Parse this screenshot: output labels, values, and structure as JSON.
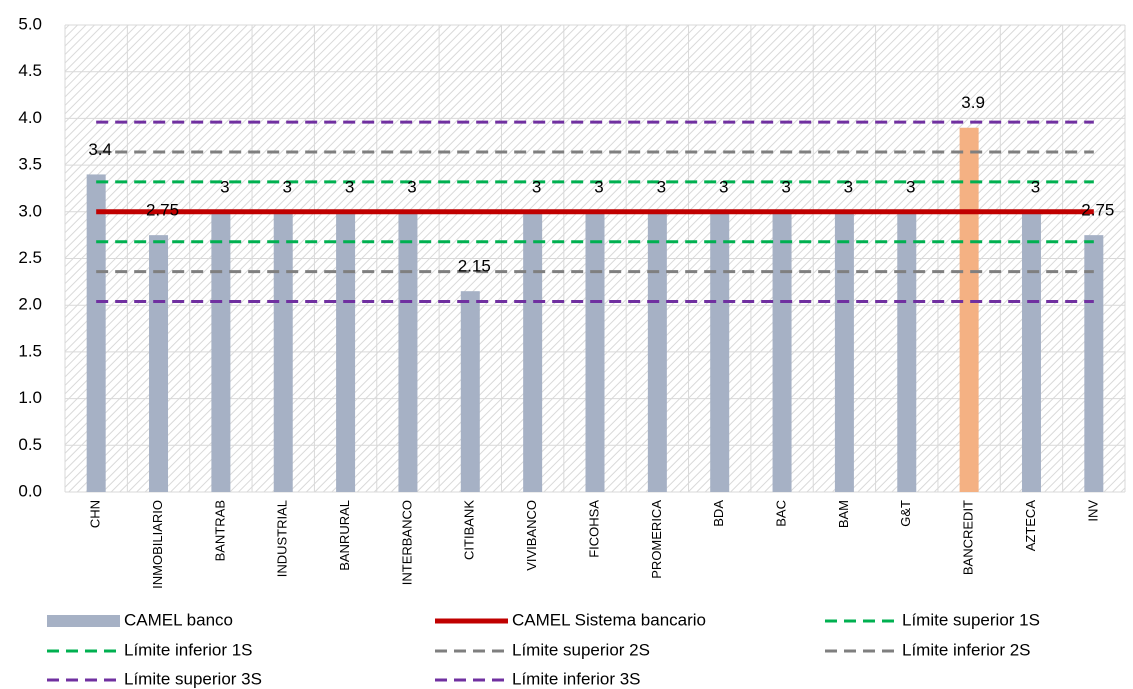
{
  "chart_data": {
    "type": "bar",
    "categories": [
      "CHN",
      "INMOBILIARIO",
      "BANTRAB",
      "INDUSTRIAL",
      "BANRURAL",
      "INTERBANCO",
      "CITIBANK",
      "VIVIBANCO",
      "FICOHSA",
      "PROMERICA",
      "BDA",
      "BAC",
      "BAM",
      "G&T",
      "BANCREDIT",
      "AZTECA",
      "INV"
    ],
    "series": [
      {
        "name": "CAMEL banco",
        "type": "bar",
        "color": "#a6b1c5",
        "colors": [
          "#a6b1c5",
          "#a6b1c5",
          "#a6b1c5",
          "#a6b1c5",
          "#a6b1c5",
          "#a6b1c5",
          "#a6b1c5",
          "#a6b1c5",
          "#a6b1c5",
          "#a6b1c5",
          "#a6b1c5",
          "#a6b1c5",
          "#a6b1c5",
          "#a6b1c5",
          "#f4b183",
          "#a6b1c5",
          "#a6b1c5"
        ],
        "values": [
          3.4,
          2.75,
          3,
          3,
          3,
          3,
          2.15,
          3,
          3,
          3,
          3,
          3,
          3,
          3,
          3.9,
          3,
          2.75
        ]
      },
      {
        "name": "CAMEL Sistema bancario",
        "type": "line",
        "color": "#c00000",
        "dashed": false,
        "values": [
          3,
          3,
          3,
          3,
          3,
          3,
          3,
          3,
          3,
          3,
          3,
          3,
          3,
          3,
          3,
          3,
          3
        ]
      },
      {
        "name": "Límite superior 1S",
        "type": "line",
        "color": "#00b050",
        "dashed": true,
        "values": [
          3.32,
          3.32,
          3.32,
          3.32,
          3.32,
          3.32,
          3.32,
          3.32,
          3.32,
          3.32,
          3.32,
          3.32,
          3.32,
          3.32,
          3.32,
          3.32,
          3.32
        ]
      },
      {
        "name": "Límite inferior 1S",
        "type": "line",
        "color": "#00b050",
        "dashed": true,
        "values": [
          2.68,
          2.68,
          2.68,
          2.68,
          2.68,
          2.68,
          2.68,
          2.68,
          2.68,
          2.68,
          2.68,
          2.68,
          2.68,
          2.68,
          2.68,
          2.68,
          2.68
        ]
      },
      {
        "name": "Límite superior 2S",
        "type": "line",
        "color": "#7f7f7f",
        "dashed": true,
        "values": [
          3.64,
          3.64,
          3.64,
          3.64,
          3.64,
          3.64,
          3.64,
          3.64,
          3.64,
          3.64,
          3.64,
          3.64,
          3.64,
          3.64,
          3.64,
          3.64,
          3.64
        ]
      },
      {
        "name": "Límite inferior 2S",
        "type": "line",
        "color": "#7f7f7f",
        "dashed": true,
        "values": [
          2.36,
          2.36,
          2.36,
          2.36,
          2.36,
          2.36,
          2.36,
          2.36,
          2.36,
          2.36,
          2.36,
          2.36,
          2.36,
          2.36,
          2.36,
          2.36,
          2.36
        ]
      },
      {
        "name": "Límite superior 3S",
        "type": "line",
        "color": "#7030a0",
        "dashed": true,
        "values": [
          3.96,
          3.96,
          3.96,
          3.96,
          3.96,
          3.96,
          3.96,
          3.96,
          3.96,
          3.96,
          3.96,
          3.96,
          3.96,
          3.96,
          3.96,
          3.96,
          3.96
        ]
      },
      {
        "name": "Límite inferior 3S",
        "type": "line",
        "color": "#7030a0",
        "dashed": true,
        "values": [
          2.04,
          2.04,
          2.04,
          2.04,
          2.04,
          2.04,
          2.04,
          2.04,
          2.04,
          2.04,
          2.04,
          2.04,
          2.04,
          2.04,
          2.04,
          2.04,
          2.04
        ]
      }
    ],
    "ylim": [
      0,
      5
    ],
    "yticks": [
      {
        "value": 0,
        "label": "0.0"
      },
      {
        "value": 0.5,
        "label": "0.5"
      },
      {
        "value": 1,
        "label": "1.0"
      },
      {
        "value": 1.5,
        "label": "1.5"
      },
      {
        "value": 2,
        "label": "2.0"
      },
      {
        "value": 2.5,
        "label": "2.5"
      },
      {
        "value": 3,
        "label": "3.0"
      },
      {
        "value": 3.5,
        "label": "3.5"
      },
      {
        "value": 4,
        "label": "4.0"
      },
      {
        "value": 4.5,
        "label": "4.5"
      },
      {
        "value": 5,
        "label": "5.0"
      }
    ],
    "grid": true,
    "legend": "bottom"
  }
}
